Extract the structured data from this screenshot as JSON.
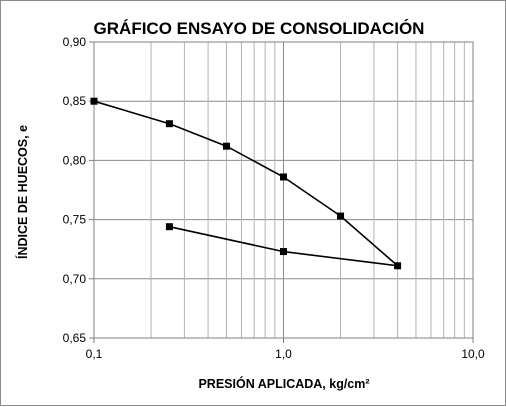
{
  "chart_data": {
    "type": "line",
    "title": "GRÁFICO ENSAYO DE CONSOLIDACIÓN",
    "xlabel": "PRESIÓN APLICADA, kg/cm²",
    "ylabel": "ÍNDICE DE HUECOS, e",
    "x_scale": "log",
    "xlim": [
      0.1,
      10
    ],
    "ylim": [
      0.65,
      0.9
    ],
    "x_ticks": [
      0.1,
      1.0,
      10.0
    ],
    "x_tick_labels": [
      "0,1",
      "1,0",
      "10,0"
    ],
    "y_ticks": [
      0.65,
      0.7,
      0.75,
      0.8,
      0.85,
      0.9
    ],
    "y_tick_labels": [
      "0,65",
      "0,70",
      "0,75",
      "0,80",
      "0,85",
      "0,90"
    ],
    "grid": true,
    "line_color": "#000000",
    "series": [
      {
        "points": [
          [
            0.1,
            0.85
          ],
          [
            0.25,
            0.831
          ],
          [
            0.5,
            0.812
          ],
          [
            1.0,
            0.786
          ],
          [
            2.0,
            0.753
          ],
          [
            4.0,
            0.711
          ],
          [
            1.0,
            0.723
          ],
          [
            0.25,
            0.744
          ]
        ]
      }
    ]
  }
}
